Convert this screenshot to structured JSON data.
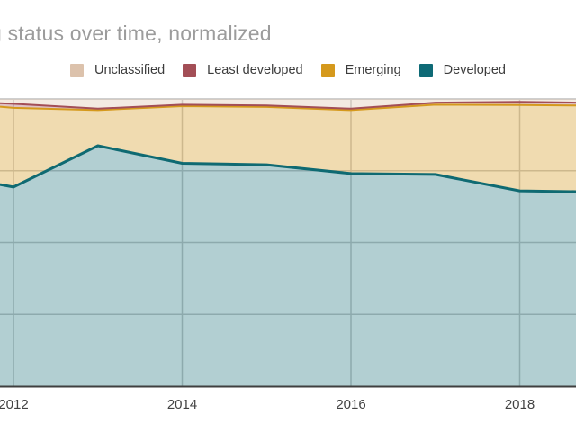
{
  "title": "g status over time, normalized",
  "legend": {
    "items": [
      {
        "label": "Unclassified",
        "color": "#dcc2ac"
      },
      {
        "label": "Least developed",
        "color": "#a34e56"
      },
      {
        "label": "Emerging",
        "color": "#d5991c"
      },
      {
        "label": "Developed",
        "color": "#0e6a76"
      }
    ]
  },
  "chart_data": {
    "type": "area",
    "stacked": true,
    "normalized": true,
    "title": "g status over time, normalized",
    "xlabel": "",
    "ylabel": "",
    "ylim": [
      0,
      100
    ],
    "grid": true,
    "legend_position": "top",
    "x": [
      2011.84,
      2012,
      2013,
      2014,
      2015,
      2016,
      2017,
      2018,
      2018.67
    ],
    "x_ticks": [
      2012,
      2014,
      2016,
      2018
    ],
    "x_tick_labels": [
      "2012",
      "2014",
      "2016",
      "2018"
    ],
    "y_gridlines_pct": [
      25,
      50,
      75,
      100
    ],
    "series": [
      {
        "name": "Developed",
        "color": "#0f6a72",
        "fill_opacity": 0.32,
        "values": [
          70.2,
          69.3,
          83.7,
          77.6,
          77.1,
          74.0,
          73.7,
          68.0,
          67.7
        ]
      },
      {
        "name": "Emerging",
        "color": "#d5991c",
        "fill_opacity": 0.35,
        "values": [
          27.1,
          27.6,
          12.4,
          19.9,
          20.1,
          22.1,
          24.3,
          29.9,
          30.0
        ]
      },
      {
        "name": "Least developed",
        "color": "#a34e56",
        "fill_opacity": 0.35,
        "values": [
          1.2,
          1.4,
          0.5,
          0.5,
          0.5,
          0.5,
          0.7,
          1.1,
          1.0
        ]
      },
      {
        "name": "Unclassified",
        "color": "#dcc2ac",
        "fill_opacity": 0.35,
        "values": [
          1.5,
          1.7,
          3.4,
          2.0,
          2.3,
          3.4,
          1.3,
          1.0,
          1.3
        ]
      }
    ]
  },
  "colors": {
    "background": "#ffffff",
    "title_text": "#9c9c9c",
    "legend_text": "#3c3c3c",
    "axis_label_text": "#424242",
    "gridline": "#c9c9c9",
    "plot_top_border": "#cfcfcf",
    "x_axis_line": "#3f3f3f"
  }
}
